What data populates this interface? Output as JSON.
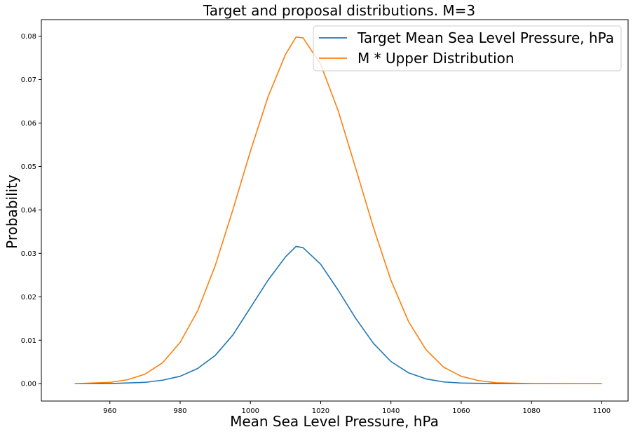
{
  "chart_data": {
    "type": "line",
    "title": "Target and proposal distributions. M=3",
    "xlabel": "Mean Sea Level Pressure, hPa",
    "ylabel": "Probability",
    "xlim": [
      940.5,
      1107.5
    ],
    "ylim": [
      -0.004,
      0.0838
    ],
    "x_ticks": [
      960,
      980,
      1000,
      1020,
      1040,
      1060,
      1080,
      1100
    ],
    "y_ticks": [
      0.0,
      0.01,
      0.02,
      0.03,
      0.04,
      0.05,
      0.06,
      0.07,
      0.08
    ],
    "x_tick_labels": [
      "960",
      "980",
      "1000",
      "1020",
      "1040",
      "1060",
      "1080",
      "1100"
    ],
    "y_tick_labels": [
      "0.00",
      "0.01",
      "0.02",
      "0.03",
      "0.04",
      "0.05",
      "0.06",
      "0.07",
      "0.08"
    ],
    "legend_position": "top-right",
    "grid": false,
    "series": [
      {
        "name": "Target Mean Sea Level Pressure, hPa",
        "color": "#1f77b4",
        "x": [
          950,
          960,
          970,
          975,
          980,
          985,
          990,
          995,
          1000,
          1005,
          1010,
          1013,
          1015,
          1020,
          1025,
          1030,
          1035,
          1040,
          1045,
          1050,
          1055,
          1060,
          1070,
          1080,
          1090,
          1100
        ],
        "y": [
          0.0,
          3e-05,
          0.0003,
          0.0008,
          0.0017,
          0.0035,
          0.0065,
          0.0112,
          0.0175,
          0.0238,
          0.0292,
          0.0316,
          0.0313,
          0.0275,
          0.0215,
          0.015,
          0.0093,
          0.0051,
          0.0025,
          0.0011,
          0.0004,
          0.00015,
          0.0,
          0.0,
          0.0,
          0.0
        ]
      },
      {
        "name": "M * Upper Distribution",
        "color": "#ff7f0e",
        "x": [
          950,
          960,
          965,
          970,
          975,
          980,
          985,
          990,
          995,
          1000,
          1005,
          1010,
          1013,
          1015,
          1020,
          1025,
          1030,
          1035,
          1040,
          1045,
          1050,
          1055,
          1060,
          1065,
          1070,
          1080,
          1090,
          1100
        ],
        "y": [
          0.0,
          0.0003,
          0.0009,
          0.0022,
          0.0048,
          0.0095,
          0.0168,
          0.0272,
          0.04,
          0.0535,
          0.066,
          0.0758,
          0.0798,
          0.0796,
          0.0735,
          0.0628,
          0.0495,
          0.036,
          0.0238,
          0.0143,
          0.0078,
          0.0038,
          0.0017,
          0.0007,
          0.0002,
          2e-05,
          0.0,
          0.0
        ]
      }
    ]
  }
}
